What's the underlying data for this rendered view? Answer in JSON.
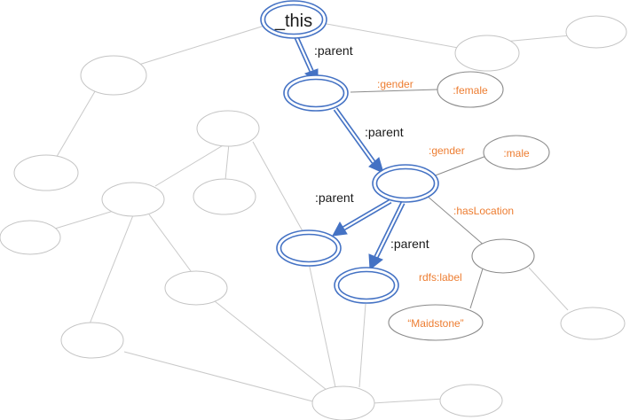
{
  "nodes": {
    "this": "_this",
    "female": ":female",
    "male": ":male",
    "maidstone": "“Maidstone”"
  },
  "edges": {
    "parent_1": ":parent",
    "parent_2": ":parent",
    "parent_3": ":parent",
    "parent_4": ":parent",
    "gender_1": ":gender",
    "gender_2": ":gender",
    "has_location": ":hasLocation",
    "rdfs_label": "rdfs:label"
  },
  "colors": {
    "highlight_blue": "#4472c4",
    "property_orange": "#ed7d31",
    "background_edge_gray": "#c9c9c9",
    "literal_outline_gray": "#8a8a8a"
  }
}
